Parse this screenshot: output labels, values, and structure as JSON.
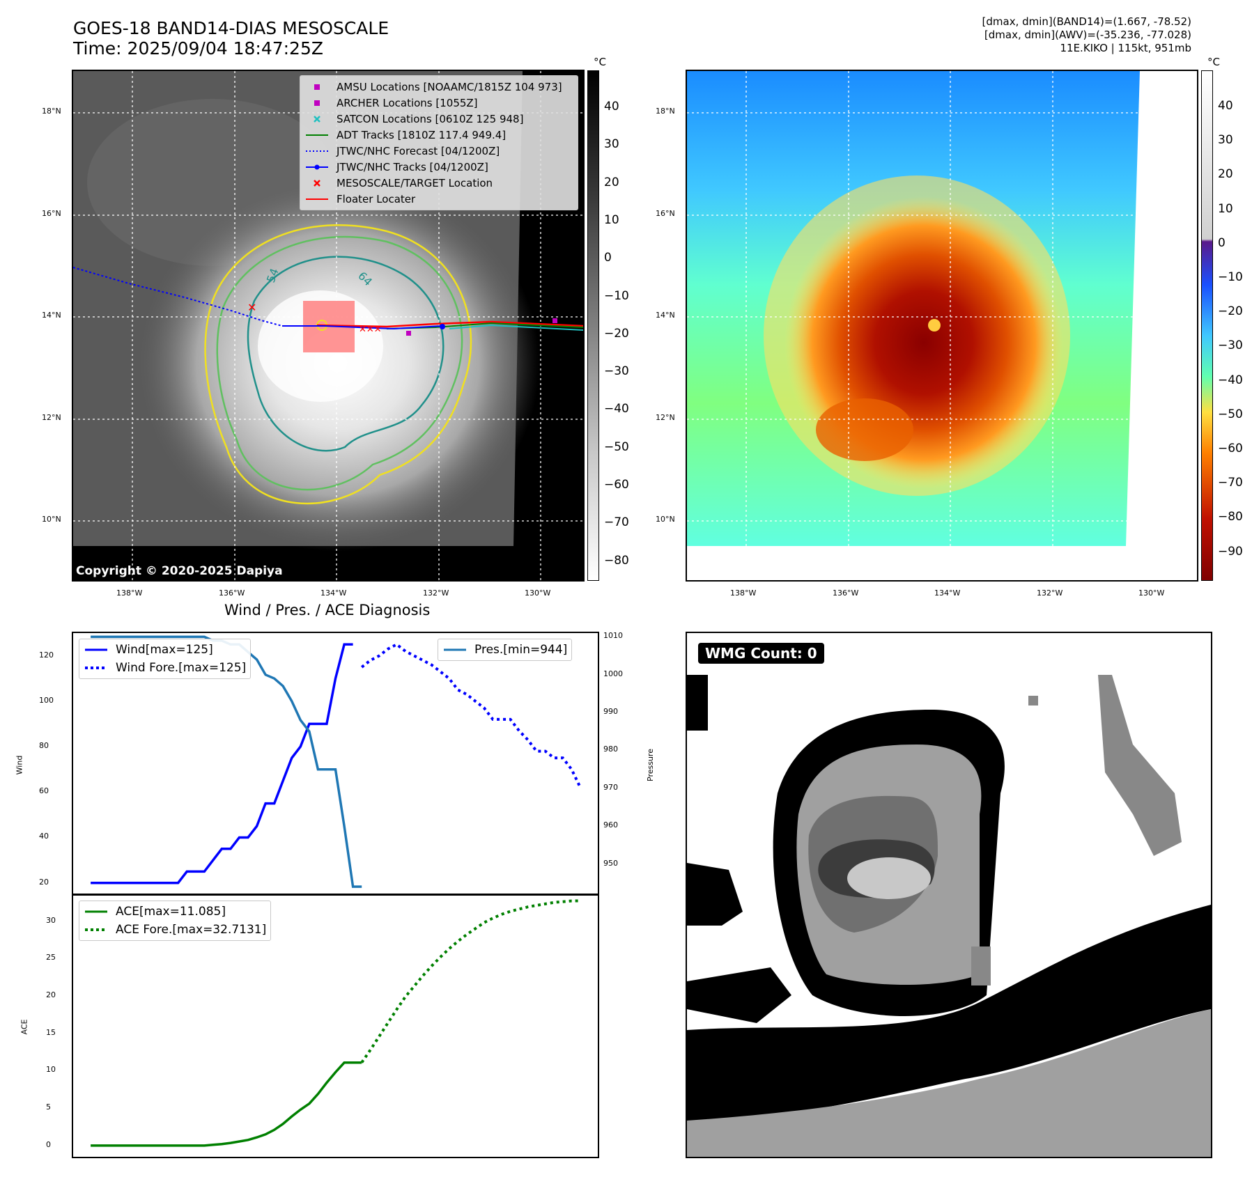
{
  "header": {
    "title_line1": "GOES-18 BAND14-DIAS MESOSCALE",
    "title_line2": "Time: 2025/09/04 18:47:25Z",
    "info_line1": "[dmax, dmin](BAND14)=(1.667, -78.52)",
    "info_line2": "[dmax, dmin](AWV)=(-35.236, -77.028)",
    "info_line3": "11E.KIKO | 115kt, 951mb"
  },
  "map": {
    "lat_labels": [
      "18°N",
      "16°N",
      "14°N",
      "12°N",
      "10°N"
    ],
    "lon_labels": [
      "138°W",
      "136°W",
      "134°W",
      "132°W",
      "130°W"
    ],
    "contour_labels": [
      "54",
      "64"
    ],
    "copyright": "Copyright © 2020-2025 Dapiya"
  },
  "legend": {
    "items": [
      {
        "label": "AMSU Locations [NOAAMC/1815Z 104 973]",
        "symbol": "square",
        "color": "#c000c0"
      },
      {
        "label": "ARCHER Locations [1055Z]",
        "symbol": "square",
        "color": "#c000c0"
      },
      {
        "label": "SATCON Locations [0610Z 125 948]",
        "symbol": "x",
        "color": "#20c0c0"
      },
      {
        "label": "ADT Tracks [1810Z 117.4 949.4]",
        "symbol": "line",
        "color": "#008000"
      },
      {
        "label": "JTWC/NHC Forecast [04/1200Z]",
        "symbol": "dotted",
        "color": "#0000ff"
      },
      {
        "label": "JTWC/NHC Tracks [04/1200Z]",
        "symbol": "line-dot",
        "color": "#0000ff"
      },
      {
        "label": "MESOSCALE/TARGET Location",
        "symbol": "x",
        "color": "#ff0000"
      },
      {
        "label": "Floater Locater",
        "symbol": "line",
        "color": "#ff0000"
      }
    ]
  },
  "colorbars": {
    "unit": "°C",
    "left_ticks": [
      "40",
      "30",
      "20",
      "10",
      "0",
      "−10",
      "−20",
      "−30",
      "−40",
      "−50",
      "−60",
      "−70",
      "−80"
    ],
    "right_ticks": [
      "40",
      "30",
      "20",
      "10",
      "0",
      "−10",
      "−20",
      "−30",
      "−40",
      "−50",
      "−60",
      "−70",
      "−80",
      "−90"
    ]
  },
  "diagnosis": {
    "title": "Wind / Pres. / ACE Diagnosis",
    "wind_ylabel": "Wind",
    "pres_ylabel": "Pressure",
    "ace_ylabel": "ACE",
    "wind_ticks": [
      "120",
      "100",
      "80",
      "60",
      "40",
      "20"
    ],
    "pres_ticks": [
      "1010",
      "1000",
      "990",
      "980",
      "970",
      "960",
      "950"
    ],
    "ace_ticks": [
      "30",
      "25",
      "20",
      "15",
      "10",
      "5",
      "0"
    ],
    "legend_wind": "Wind[max=125]",
    "legend_wind_fore": "Wind Fore.[max=125]",
    "legend_pres": "Pres.[min=944]",
    "legend_ace": "ACE[max=11.085]",
    "legend_ace_fore": "ACE Fore.[max=32.7131]"
  },
  "wmg": {
    "label": "WMG Count: 0"
  },
  "colors": {
    "wind": "#0000ff",
    "pressure": "#1f77b4",
    "ace": "#008000",
    "contour_yellow": "#f0e020",
    "contour_green": "#60c060",
    "contour_teal": "#20908a"
  },
  "chart_data": [
    {
      "type": "line",
      "title": "Wind / Pres. / ACE Diagnosis",
      "ylabel": "Wind",
      "ylim": [
        15,
        130
      ],
      "series": [
        {
          "name": "Wind[max=125]",
          "axis": "left",
          "style": "solid",
          "x": [
            0,
            1,
            2,
            3,
            4,
            5,
            6,
            7,
            8,
            9,
            10,
            11,
            12,
            13,
            14,
            15,
            16,
            17,
            18,
            19,
            20,
            21,
            22,
            23,
            24,
            25,
            26,
            27,
            28,
            29,
            30
          ],
          "values": [
            20,
            20,
            20,
            20,
            20,
            20,
            20,
            20,
            20,
            20,
            20,
            25,
            25,
            25,
            30,
            35,
            35,
            40,
            40,
            45,
            55,
            55,
            65,
            75,
            80,
            90,
            90,
            90,
            110,
            125,
            125
          ]
        },
        {
          "name": "Wind Fore.[max=125]",
          "axis": "left",
          "style": "dotted",
          "x": [
            31,
            32,
            33,
            34,
            35,
            36,
            37,
            38,
            39,
            40,
            41,
            42,
            43,
            44,
            45,
            46,
            47,
            48,
            49,
            50,
            51,
            52,
            53,
            54,
            55,
            56
          ],
          "values": [
            115,
            118,
            120,
            123,
            125,
            122,
            120,
            118,
            116,
            113,
            110,
            105,
            103,
            100,
            97,
            92,
            92,
            92,
            87,
            83,
            78,
            78,
            75,
            75,
            70,
            62
          ]
        },
        {
          "name": "Pres.[min=944]",
          "axis": "right",
          "style": "solid",
          "ylim": [
            942,
            1011
          ],
          "x": [
            0,
            1,
            2,
            3,
            4,
            5,
            6,
            7,
            8,
            9,
            10,
            11,
            12,
            13,
            14,
            15,
            16,
            17,
            18,
            19,
            20,
            21,
            22,
            23,
            24,
            25,
            26,
            27,
            28,
            29,
            30,
            31
          ],
          "values": [
            1010,
            1010,
            1010,
            1010,
            1010,
            1010,
            1010,
            1010,
            1010,
            1010,
            1010,
            1010,
            1010,
            1010,
            1009,
            1009,
            1008,
            1008,
            1006,
            1004,
            1000,
            999,
            997,
            993,
            988,
            985,
            975,
            975,
            975,
            960,
            944,
            944
          ]
        }
      ]
    },
    {
      "type": "line",
      "ylabel": "ACE",
      "ylim": [
        -1.5,
        33.5
      ],
      "series": [
        {
          "name": "ACE[max=11.085]",
          "style": "solid",
          "x": [
            0,
            1,
            2,
            3,
            4,
            5,
            6,
            7,
            8,
            9,
            10,
            11,
            12,
            13,
            14,
            15,
            16,
            17,
            18,
            19,
            20,
            21,
            22,
            23,
            24,
            25,
            26,
            27,
            28,
            29,
            30,
            31
          ],
          "values": [
            0,
            0,
            0,
            0,
            0,
            0,
            0,
            0,
            0,
            0,
            0,
            0,
            0,
            0,
            0.1,
            0.2,
            0.35,
            0.55,
            0.75,
            1.1,
            1.5,
            2.1,
            2.9,
            3.9,
            4.8,
            5.6,
            6.9,
            8.4,
            9.8,
            11.085,
            11.085,
            11.085
          ]
        },
        {
          "name": "ACE Fore.[max=32.7131]",
          "style": "dotted",
          "x": [
            31,
            32,
            33,
            34,
            35,
            36,
            37,
            38,
            39,
            40,
            41,
            42,
            43,
            44,
            45,
            46,
            47,
            48,
            49,
            50,
            51,
            52,
            53,
            54,
            55,
            56
          ],
          "values": [
            11.1,
            12.8,
            14.6,
            16.4,
            18.2,
            19.9,
            21.3,
            22.7,
            24.0,
            25.2,
            26.3,
            27.3,
            28.2,
            29.0,
            29.8,
            30.4,
            30.9,
            31.3,
            31.6,
            31.9,
            32.1,
            32.3,
            32.5,
            32.6,
            32.7,
            32.7131
          ]
        }
      ]
    }
  ]
}
